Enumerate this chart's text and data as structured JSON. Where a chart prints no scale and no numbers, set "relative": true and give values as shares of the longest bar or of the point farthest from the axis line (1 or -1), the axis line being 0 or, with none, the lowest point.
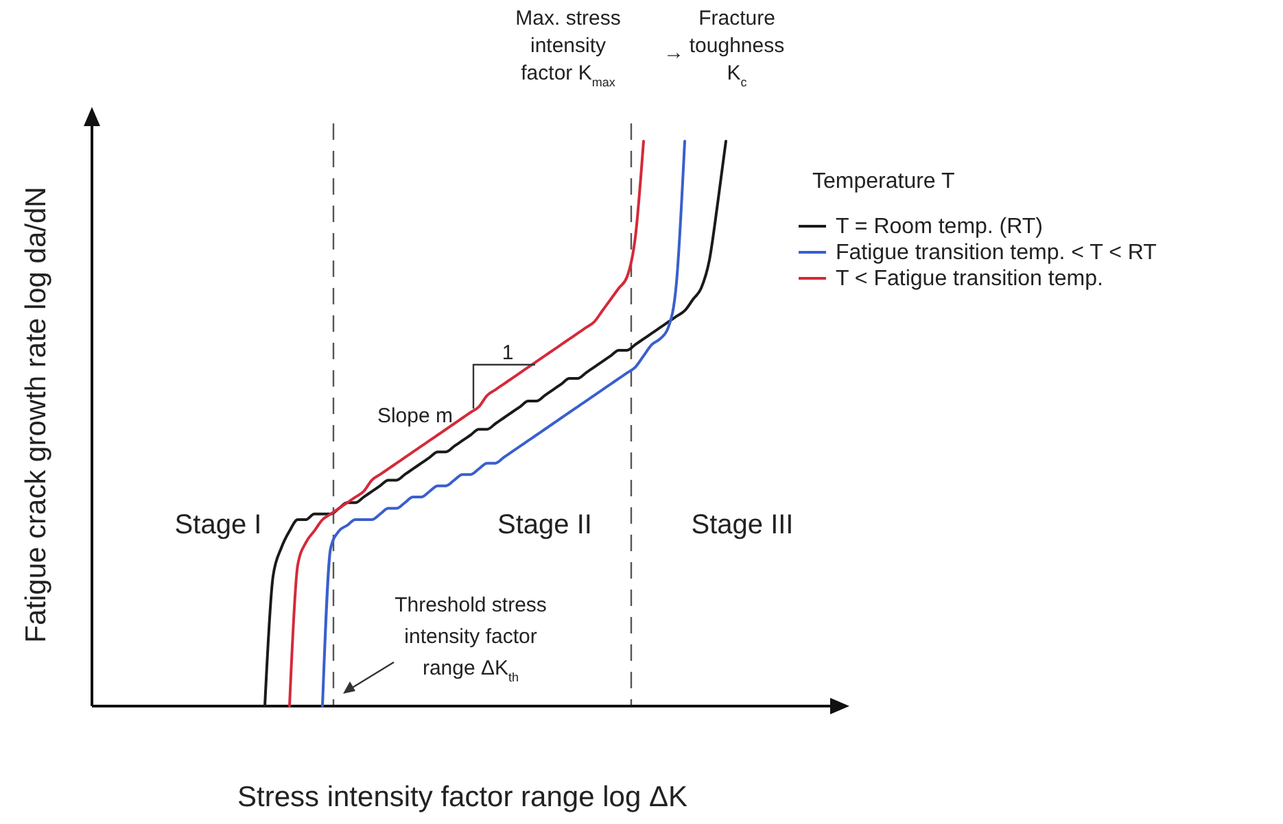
{
  "chart_data": {
    "type": "line",
    "relative": true,
    "xlabel": "Stress intensity factor range log ΔK",
    "ylabel": "Fatigue crack growth rate log da/dN",
    "legend_title": "Temperature T",
    "legend": "top right",
    "annotations": [
      "Stage I",
      "Stage II",
      "Stage III",
      "Slope m",
      "1",
      "Threshold stress intensity factor range ΔK$_{th}$",
      "Max. stress intensity factor K$_{max}$",
      "→",
      "Fracture toughness K$_{c}$"
    ],
    "categories": [
      null,
      null,
      null,
      null,
      null,
      null,
      null,
      null,
      null,
      null,
      null,
      null,
      null,
      null,
      null,
      null,
      null,
      null,
      null,
      null,
      null,
      null,
      null,
      null,
      null,
      null,
      null,
      null,
      null,
      null,
      null,
      null,
      null,
      null,
      null,
      null,
      null,
      null,
      null,
      null,
      null,
      null,
      null,
      null,
      null,
      null,
      null,
      null,
      null,
      null,
      null,
      null,
      null,
      null,
      null,
      null,
      null,
      null,
      null,
      null,
      null,
      null,
      null,
      null,
      null,
      null,
      null,
      null,
      null,
      null,
      null,
      null,
      null,
      null,
      null,
      null,
      null,
      null,
      null
    ],
    "series": [
      {
        "name": "T = Room temp. (RT)",
        "color": "#1a1a1a",
        "values": [
          null,
          null,
          null,
          null,
          null,
          null,
          null,
          null,
          null,
          null,
          null,
          null,
          null,
          null,
          null,
          null,
          null,
          null,
          null,
          null,
          null,
          0,
          0.23,
          0.28,
          0.31,
          0.33,
          0.33,
          0.34,
          0.34,
          0.34,
          0.35,
          0.36,
          0.36,
          0.37,
          0.38,
          0.39,
          0.4,
          0.4,
          0.41,
          0.42,
          0.43,
          0.44,
          0.45,
          0.45,
          0.46,
          0.47,
          0.48,
          0.49,
          0.49,
          0.5,
          0.51,
          0.52,
          0.53,
          0.54,
          0.54,
          0.55,
          0.56,
          0.57,
          0.58,
          0.58,
          0.59,
          0.6,
          0.61,
          0.62,
          0.63,
          0.63,
          0.64,
          0.65,
          0.66,
          0.67,
          0.68,
          0.69,
          0.7,
          0.72,
          0.74,
          0.79,
          0.89,
          1,
          null
        ]
      },
      {
        "name": "Fatigue transition temp. < T < RT",
        "color": "#3a5fcd",
        "values": [
          null,
          null,
          null,
          null,
          null,
          null,
          null,
          null,
          null,
          null,
          null,
          null,
          null,
          null,
          null,
          null,
          null,
          null,
          null,
          null,
          null,
          null,
          null,
          null,
          null,
          null,
          null,
          null,
          0,
          0.28,
          0.31,
          0.32,
          0.33,
          0.33,
          0.33,
          0.34,
          0.35,
          0.35,
          0.36,
          0.37,
          0.37,
          0.38,
          0.39,
          0.39,
          0.4,
          0.41,
          0.41,
          0.42,
          0.43,
          0.43,
          0.44,
          0.45,
          0.46,
          0.47,
          0.48,
          0.49,
          0.5,
          0.51,
          0.52,
          0.53,
          0.54,
          0.55,
          0.56,
          0.57,
          0.58,
          0.59,
          0.6,
          0.62,
          0.64,
          0.65,
          0.67,
          0.75,
          1,
          null,
          null,
          null,
          null,
          null,
          null
        ]
      },
      {
        "name": "T < Fatigue transition temp.",
        "color": "#d42a3a",
        "values": [
          null,
          null,
          null,
          null,
          null,
          null,
          null,
          null,
          null,
          null,
          null,
          null,
          null,
          null,
          null,
          null,
          null,
          null,
          null,
          null,
          null,
          null,
          null,
          null,
          0,
          0.25,
          0.29,
          0.31,
          0.33,
          0.34,
          0.35,
          0.36,
          0.37,
          0.38,
          0.4,
          0.41,
          0.42,
          0.43,
          0.44,
          0.45,
          0.46,
          0.47,
          0.48,
          0.49,
          0.5,
          0.51,
          0.52,
          0.53,
          0.55,
          0.56,
          0.57,
          0.58,
          0.59,
          0.6,
          0.61,
          0.62,
          0.63,
          0.64,
          0.65,
          0.66,
          0.67,
          0.68,
          0.7,
          0.72,
          0.74,
          0.76,
          0.83,
          1,
          null,
          null,
          null,
          null,
          null,
          null,
          null,
          null,
          null,
          null,
          null
        ]
      }
    ]
  }
}
